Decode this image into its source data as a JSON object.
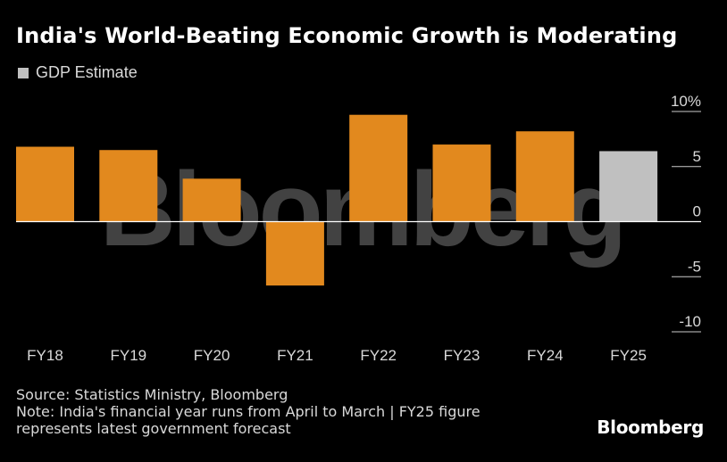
{
  "title": "India's World-Beating Economic Growth is Moderating",
  "legend": {
    "label": "GDP Estimate",
    "color": "#c0c0c0"
  },
  "watermark": "Bloomberg",
  "colors": {
    "bar": "#e2891e",
    "estimate": "#c0c0c0",
    "background": "#000000",
    "zero_line": "#ffffff"
  },
  "chart_data": {
    "type": "bar",
    "categories": [
      "FY18",
      "FY19",
      "FY20",
      "FY21",
      "FY22",
      "FY23",
      "FY24",
      "FY25"
    ],
    "values": [
      6.8,
      6.5,
      3.9,
      -5.8,
      9.7,
      7.0,
      8.2,
      6.4
    ],
    "estimate": [
      false,
      false,
      false,
      false,
      false,
      false,
      false,
      true
    ],
    "ylim": [
      -10,
      10
    ],
    "yticks": [
      10,
      5,
      0,
      -5,
      -10
    ],
    "ytick_labels": [
      "10%",
      "5",
      "0",
      "-5",
      "-10"
    ],
    "title": "India's World-Beating Economic Growth is Moderating",
    "xlabel": "",
    "ylabel": ""
  },
  "footer": {
    "source": "Source: Statistics Ministry, Bloomberg",
    "note_line1": "Note: India's financial year runs from April to March | FY25 figure",
    "note_line2": "represents latest government forecast"
  },
  "brand": "Bloomberg"
}
